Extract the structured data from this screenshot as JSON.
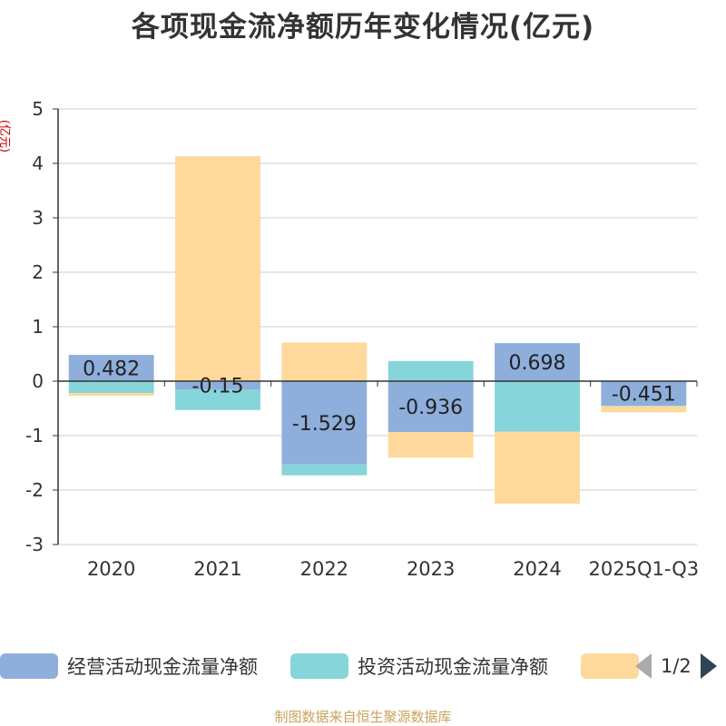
{
  "title": "各项现金流净额历年变化情况(亿元)",
  "source": "制图数据来自恒生聚源数据库",
  "legend": {
    "items": [
      {
        "label": "经营活动现金流量净额",
        "color": "#8eaedb"
      },
      {
        "label": "投资活动现金流量净额",
        "color": "#86d5da"
      },
      {
        "label": "",
        "color": "#fed99b"
      }
    ],
    "page": "1/2"
  },
  "chart_data": {
    "type": "bar",
    "stacked": true,
    "title": "各项现金流净额历年变化情况(亿元)",
    "ylabel": "(亿元)",
    "xlabel": "",
    "ylim": [
      -3,
      5
    ],
    "yticks": [
      5,
      4,
      3,
      2,
      1,
      0,
      -1,
      -2,
      -3
    ],
    "grid": true,
    "categories": [
      "2020",
      "2021",
      "2022",
      "2023",
      "2024",
      "2025Q1-Q3"
    ],
    "series": [
      {
        "name": "经营活动现金流量净额",
        "color": "#8eaedb",
        "values": [
          0.482,
          -0.15,
          -1.529,
          -0.936,
          0.698,
          -0.451
        ],
        "labels": [
          "0.482",
          "-0.15",
          "-1.529",
          "-0.936",
          "0.698",
          "-0.451"
        ]
      },
      {
        "name": "投资活动现金流量净额",
        "color": "#86d5da",
        "values": [
          -0.22,
          -0.38,
          -0.2,
          0.37,
          -0.93,
          -0.01
        ]
      },
      {
        "name": "",
        "color": "#fed99b",
        "values": [
          -0.05,
          4.13,
          0.71,
          -0.47,
          -1.32,
          -0.11
        ]
      }
    ]
  }
}
